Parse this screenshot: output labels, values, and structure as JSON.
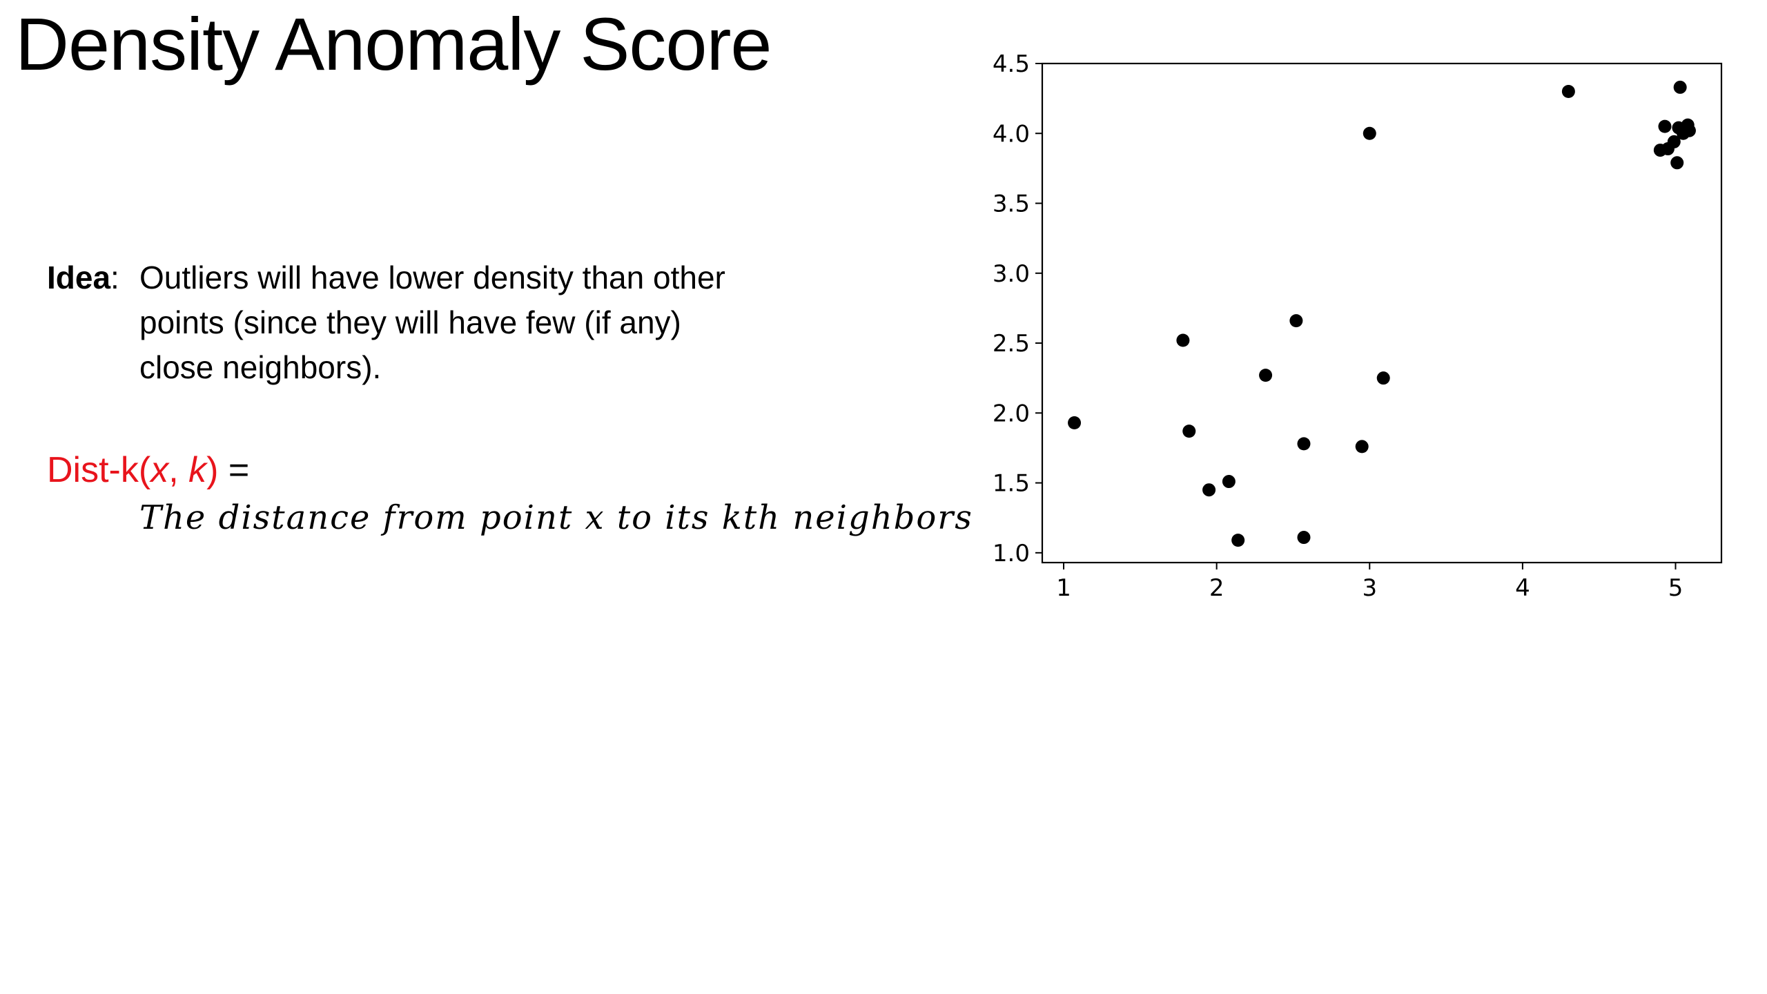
{
  "slide": {
    "title": "Density Anomaly Score"
  },
  "idea": {
    "label": "Idea",
    "colon": ":",
    "text": "Outliers will have lower density than other points (since they will have few (if any) close neighbors)."
  },
  "formula": {
    "name": "Dist-k",
    "open_paren": "(",
    "arg_x": "x",
    "comma": ", ",
    "arg_k": "k",
    "close_paren": ")",
    "equals": " =",
    "definition": "The distance from point x to its kth neighbors",
    "name_color": "#e8141c"
  },
  "chart_data": {
    "type": "scatter",
    "title": "",
    "xlabel": "",
    "ylabel": "",
    "xlim": [
      0.86,
      5.3
    ],
    "ylim": [
      0.93,
      4.5
    ],
    "xticks": [
      1,
      2,
      3,
      4,
      5
    ],
    "yticks": [
      1.0,
      1.5,
      2.0,
      2.5,
      3.0,
      3.5,
      4.0,
      4.5
    ],
    "xtick_labels": [
      "1",
      "2",
      "3",
      "4",
      "5"
    ],
    "ytick_labels": [
      "1.0",
      "1.5",
      "2.0",
      "2.5",
      "3.0",
      "3.5",
      "4.0",
      "4.5"
    ],
    "grid": false,
    "marker_color": "#000000",
    "points": [
      {
        "x": 1.07,
        "y": 1.93
      },
      {
        "x": 1.78,
        "y": 2.52
      },
      {
        "x": 1.82,
        "y": 1.87
      },
      {
        "x": 1.95,
        "y": 1.45
      },
      {
        "x": 2.08,
        "y": 1.51
      },
      {
        "x": 2.14,
        "y": 1.09
      },
      {
        "x": 2.32,
        "y": 2.27
      },
      {
        "x": 2.52,
        "y": 2.66
      },
      {
        "x": 2.57,
        "y": 1.78
      },
      {
        "x": 2.57,
        "y": 1.11
      },
      {
        "x": 2.95,
        "y": 1.76
      },
      {
        "x": 3.0,
        "y": 4.0
      },
      {
        "x": 3.09,
        "y": 2.25
      },
      {
        "x": 4.3,
        "y": 4.3
      },
      {
        "x": 4.9,
        "y": 3.88
      },
      {
        "x": 4.93,
        "y": 4.05
      },
      {
        "x": 4.95,
        "y": 3.89
      },
      {
        "x": 4.99,
        "y": 3.94
      },
      {
        "x": 5.01,
        "y": 3.79
      },
      {
        "x": 5.02,
        "y": 4.04
      },
      {
        "x": 5.03,
        "y": 4.33
      },
      {
        "x": 5.05,
        "y": 4.0
      },
      {
        "x": 5.08,
        "y": 4.06
      },
      {
        "x": 5.09,
        "y": 4.02
      }
    ]
  }
}
